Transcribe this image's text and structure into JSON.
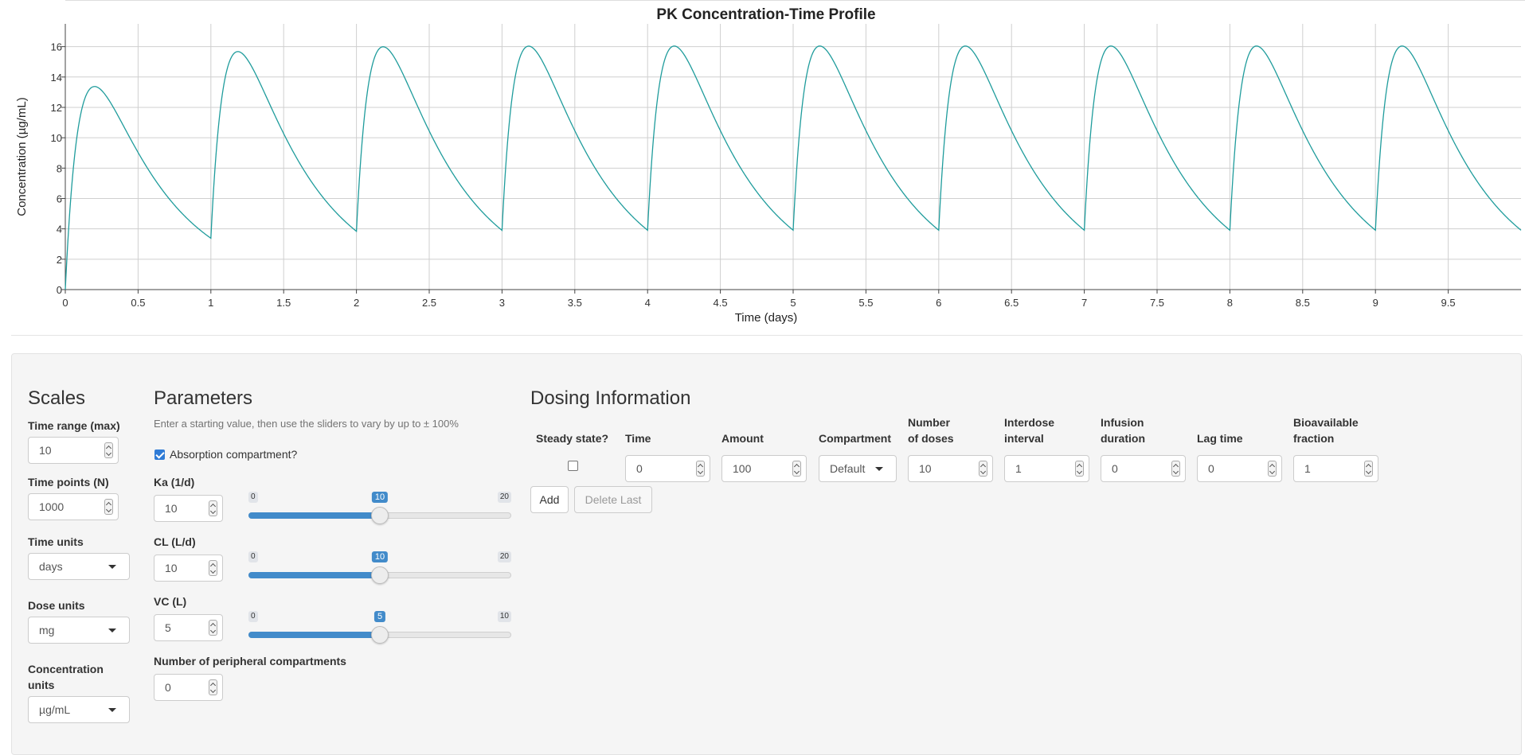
{
  "chart_data": {
    "type": "line",
    "title": "PK Concentration-Time Profile",
    "xlabel": "Time (days)",
    "ylabel": "Concentration (µg/mL)",
    "xlim": [
      0,
      10
    ],
    "ylim": [
      0,
      17.5
    ],
    "x_ticks": [
      "0",
      "0.5",
      "1",
      "1.5",
      "2",
      "2.5",
      "3",
      "3.5",
      "4",
      "4.5",
      "5",
      "5.5",
      "6",
      "6.5",
      "7",
      "7.5",
      "8",
      "8.5",
      "9",
      "9.5"
    ],
    "y_ticks": [
      "0",
      "2",
      "4",
      "6",
      "8",
      "10",
      "12",
      "14",
      "16"
    ],
    "grid": true,
    "series": [
      {
        "color": "#1f9c9c",
        "model": "one-compartment oral absorption, repeated dosing",
        "dose": 100,
        "ka": 10,
        "cl": 10,
        "vc": 5,
        "n_doses": 10,
        "interval": 1,
        "peaks": [
          13.4,
          15.8,
          16.0,
          16.0,
          16.0,
          16.0,
          16.0,
          16.0,
          16.0,
          16.0
        ],
        "troughs": [
          3.4,
          3.9,
          4.0,
          4.0,
          4.0,
          4.0,
          4.0,
          4.0,
          4.0,
          4.0
        ]
      }
    ]
  },
  "scales": {
    "title": "Scales",
    "time_range_label": "Time range (max)",
    "time_range_value": "10",
    "time_points_label": "Time points (N)",
    "time_points_value": "1000",
    "time_units_label": "Time units",
    "time_units_value": "days",
    "dose_units_label": "Dose units",
    "dose_units_value": "mg",
    "conc_units_label_1": "Concentration",
    "conc_units_label_2": "units",
    "conc_units_value": "µg/mL"
  },
  "parameters": {
    "title": "Parameters",
    "help": "Enter a starting value, then use the sliders to vary by up to ± 100%",
    "absorption_label": "Absorption compartment?",
    "absorption_checked": true,
    "ka_label": "Ka (1/d)",
    "ka_value": "10",
    "ka_min": "0",
    "ka_max": "20",
    "ka_cur": "10",
    "ka_fraction": 0.5,
    "cl_label": "CL (L/d)",
    "cl_value": "10",
    "cl_min": "0",
    "cl_max": "20",
    "cl_cur": "10",
    "cl_fraction": 0.5,
    "vc_label": "VC (L)",
    "vc_value": "5",
    "vc_min": "0",
    "vc_max": "10",
    "vc_cur": "5",
    "vc_fraction": 0.5,
    "peripheral_label": "Number of peripheral compartments",
    "peripheral_value": "0"
  },
  "dosing": {
    "title": "Dosing Information",
    "headers": {
      "steady": "Steady state?",
      "time": "Time",
      "amount": "Amount",
      "compartment": "Compartment",
      "ndoses_1": "Number",
      "ndoses_2": "of doses",
      "interval_1": "Interdose",
      "interval_2": "interval",
      "infusion_1": "Infusion",
      "infusion_2": "duration",
      "lag": "Lag time",
      "bio_1": "Bioavailable",
      "bio_2": "fraction"
    },
    "row": {
      "steady_checked": false,
      "time": "0",
      "amount": "100",
      "compartment": "Default",
      "ndoses": "10",
      "interval": "1",
      "infusion": "0",
      "lag": "0",
      "bio": "1"
    },
    "add_label": "Add",
    "delete_label": "Delete Last"
  }
}
